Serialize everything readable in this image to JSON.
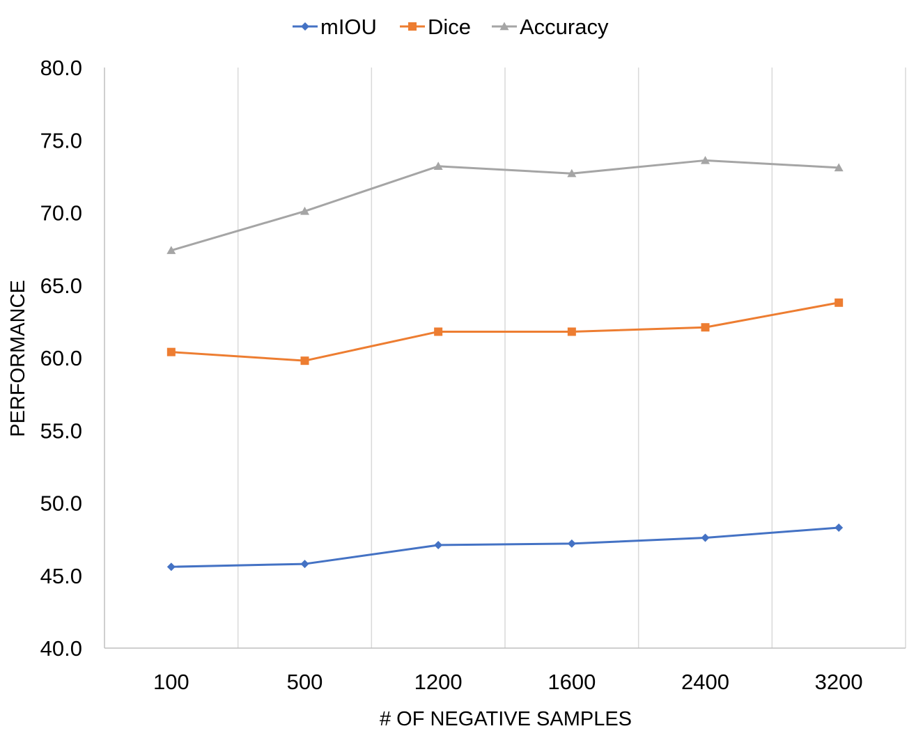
{
  "chart_data": {
    "type": "line",
    "title": "",
    "xlabel": "# OF NEGATIVE SAMPLES",
    "ylabel": "PERFORMANCE",
    "categories": [
      "100",
      "500",
      "1200",
      "1600",
      "2400",
      "3200"
    ],
    "ylim": [
      40.0,
      80.0
    ],
    "yticks": [
      "40.0",
      "45.0",
      "50.0",
      "55.0",
      "60.0",
      "65.0",
      "70.0",
      "75.0",
      "80.0"
    ],
    "grid": "vertical",
    "legend_position": "top",
    "series": [
      {
        "name": "mIOU",
        "color": "#4472C4",
        "marker": "diamond",
        "values": [
          45.6,
          45.8,
          47.1,
          47.2,
          47.6,
          48.3
        ]
      },
      {
        "name": "Dice",
        "color": "#ED7D31",
        "marker": "square",
        "values": [
          60.4,
          59.8,
          61.8,
          61.8,
          62.1,
          63.8
        ]
      },
      {
        "name": "Accuracy",
        "color": "#A5A5A5",
        "marker": "triangle",
        "values": [
          67.4,
          70.1,
          73.2,
          72.7,
          73.6,
          73.1
        ]
      }
    ]
  }
}
